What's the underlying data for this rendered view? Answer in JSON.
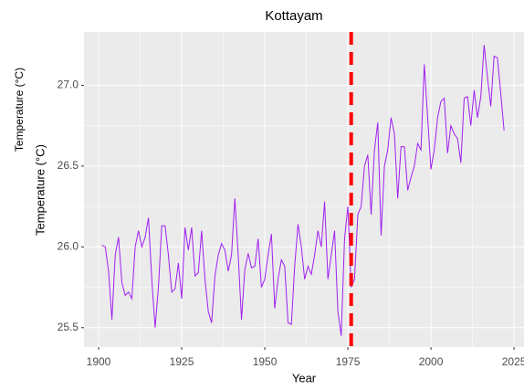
{
  "chart_data": {
    "type": "line",
    "title": "Kottayam",
    "xlabel": "Year",
    "ylabel": [
      "Temperature (°C)",
      "Temperature (°C)"
    ],
    "x": [
      1901,
      1902,
      1903,
      1904,
      1905,
      1906,
      1907,
      1908,
      1909,
      1910,
      1911,
      1912,
      1913,
      1914,
      1915,
      1916,
      1917,
      1918,
      1919,
      1920,
      1921,
      1922,
      1923,
      1924,
      1925,
      1926,
      1927,
      1928,
      1929,
      1930,
      1931,
      1932,
      1933,
      1934,
      1935,
      1936,
      1937,
      1938,
      1939,
      1940,
      1941,
      1942,
      1943,
      1944,
      1945,
      1946,
      1947,
      1948,
      1949,
      1950,
      1951,
      1952,
      1953,
      1954,
      1955,
      1956,
      1957,
      1958,
      1959,
      1960,
      1961,
      1962,
      1963,
      1964,
      1965,
      1966,
      1967,
      1968,
      1969,
      1970,
      1971,
      1972,
      1973,
      1974,
      1975,
      1976,
      1977,
      1978,
      1979,
      1980,
      1981,
      1982,
      1983,
      1984,
      1985,
      1986,
      1987,
      1988,
      1989,
      1990,
      1991,
      1992,
      1993,
      1994,
      1995,
      1996,
      1997,
      1998,
      1999,
      2000,
      2001,
      2002,
      2003,
      2004,
      2005,
      2006,
      2007,
      2008,
      2009,
      2010,
      2011,
      2012,
      2013,
      2014,
      2015,
      2016,
      2017,
      2018,
      2019,
      2020,
      2021,
      2022
    ],
    "series": [
      {
        "name": "Temperature",
        "color": "#a020f0",
        "values": [
          26.01,
          26.0,
          25.85,
          25.55,
          25.95,
          26.06,
          25.78,
          25.7,
          25.72,
          25.68,
          26.0,
          26.1,
          26.0,
          26.06,
          26.18,
          25.8,
          25.5,
          25.75,
          26.13,
          26.13,
          25.95,
          25.72,
          25.74,
          25.9,
          25.68,
          26.12,
          25.98,
          26.12,
          25.82,
          25.84,
          26.1,
          25.8,
          25.6,
          25.53,
          25.82,
          25.95,
          26.02,
          25.98,
          25.85,
          25.95,
          26.3,
          25.95,
          25.55,
          25.86,
          25.96,
          25.87,
          25.88,
          26.05,
          25.75,
          25.8,
          25.95,
          26.08,
          25.62,
          25.8,
          25.92,
          25.88,
          25.53,
          25.52,
          25.88,
          26.14,
          26.0,
          25.8,
          25.88,
          25.83,
          25.95,
          26.1,
          26.0,
          26.28,
          25.8,
          25.95,
          26.1,
          25.6,
          25.45,
          26.05,
          26.25,
          25.75,
          25.8,
          26.2,
          26.25,
          26.5,
          26.57,
          26.2,
          26.6,
          26.77,
          26.07,
          26.5,
          26.6,
          26.8,
          26.7,
          26.3,
          26.62,
          26.62,
          26.35,
          26.43,
          26.5,
          26.64,
          26.6,
          27.13,
          26.8,
          26.48,
          26.6,
          26.8,
          26.9,
          26.92,
          26.58,
          26.75,
          26.7,
          26.67,
          26.52,
          26.92,
          26.93,
          26.75,
          26.97,
          26.8,
          26.93,
          27.25,
          27.05,
          26.87,
          27.18,
          27.17,
          26.95,
          26.72
        ]
      }
    ],
    "vline": {
      "x": 1976,
      "color": "#ff0000"
    },
    "xlim": [
      1895.6,
      2028
    ],
    "ylim": [
      25.38,
      27.33
    ],
    "xticks": [
      1900,
      1925,
      1950,
      1975,
      2000,
      2025
    ],
    "yticks": [
      25.5,
      {
        "value": 26,
        "label": "26.0"
      },
      26.5,
      {
        "value": 27,
        "label": "27.0"
      }
    ],
    "grid": true
  }
}
